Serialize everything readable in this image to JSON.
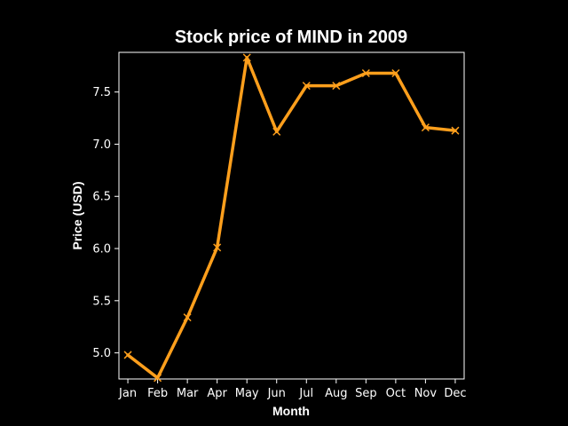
{
  "chart_data": {
    "type": "line",
    "title": "Stock price of MIND in 2009",
    "xlabel": "Month",
    "ylabel": "Price (USD)",
    "categories": [
      "Jan",
      "Feb",
      "Mar",
      "Apr",
      "May",
      "Jun",
      "Jul",
      "Aug",
      "Sep",
      "Oct",
      "Nov",
      "Dec"
    ],
    "series": [
      {
        "values": [
          4.98,
          4.76,
          5.34,
          6.01,
          7.83,
          7.12,
          7.56,
          7.56,
          7.68,
          7.68,
          7.16,
          7.13
        ],
        "color": "#ff9f1c",
        "marker": "x"
      }
    ],
    "ylim": [
      4.75,
      7.88
    ],
    "yticks": [
      "5.0",
      "5.5",
      "6.0",
      "6.5",
      "7.0",
      "7.5"
    ],
    "grid": false,
    "legend": "none",
    "background": "#000000",
    "foreground": "#ffffff"
  }
}
